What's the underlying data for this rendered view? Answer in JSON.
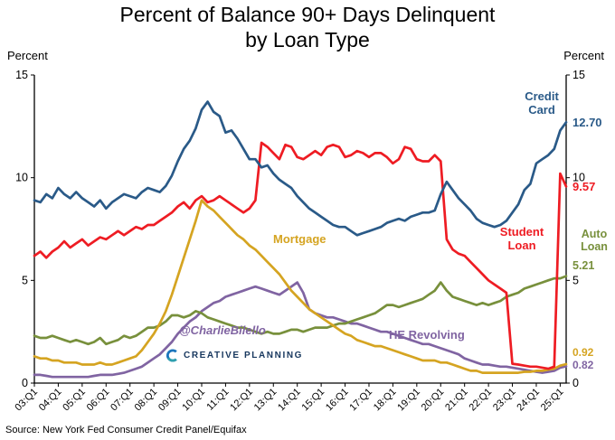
{
  "title": {
    "line1": "Percent of Balance 90+ Days Delinquent",
    "line2": "by Loan Type"
  },
  "axis": {
    "y_title_left": "Percent",
    "y_title_right": "Percent"
  },
  "annotations": {
    "credit_card_label": "Credit Card",
    "credit_card_value": "12.70",
    "student_loan_label": "Student Loan",
    "student_loan_value": "9.57",
    "auto_loan_label": "Auto Loan",
    "auto_loan_value": "5.21",
    "mortgage_label": "Mortgage",
    "mortgage_value": "0.92",
    "he_revolving_label": "HE Revolving",
    "he_revolving_value": "0.82"
  },
  "watermark": {
    "handle": "@CharlieBilello",
    "brand": "CREATIVE PLANNING"
  },
  "source": "Source: New York Fed Consumer Credit Panel/Equifax",
  "chart_data": {
    "type": "line",
    "title": "Percent of Balance 90+ Days Delinquent by Loan Type",
    "ylabel": "Percent",
    "ylim": [
      0,
      15
    ],
    "yticks": [
      0,
      5,
      10,
      15
    ],
    "grid": false,
    "legend_position": "inline-labels",
    "x_unit": "quarter",
    "x_start": "2003:Q1",
    "x_end": "2025:Q2",
    "n_points": 90,
    "x_tick_every_quarters": 4,
    "x_tick_labels": [
      "03:Q1",
      "04:Q1",
      "05:Q1",
      "06:Q1",
      "07:Q1",
      "08:Q1",
      "09:Q1",
      "10:Q1",
      "11:Q1",
      "12:Q1",
      "13:Q1",
      "14:Q1",
      "15:Q1",
      "16:Q1",
      "17:Q1",
      "18:Q1",
      "19:Q1",
      "20:Q1",
      "21:Q1",
      "22:Q1",
      "23:Q1",
      "24:Q1",
      "25:Q1"
    ],
    "series": [
      {
        "name": "HE Revolving",
        "color": "#8064A2",
        "end_label": "0.82",
        "values": [
          0.4,
          0.4,
          0.35,
          0.3,
          0.3,
          0.3,
          0.3,
          0.3,
          0.3,
          0.3,
          0.35,
          0.4,
          0.4,
          0.4,
          0.45,
          0.5,
          0.6,
          0.7,
          0.8,
          1.0,
          1.2,
          1.4,
          1.7,
          2.0,
          2.4,
          2.7,
          3.0,
          3.2,
          3.5,
          3.7,
          3.9,
          4.0,
          4.2,
          4.3,
          4.4,
          4.5,
          4.6,
          4.7,
          4.6,
          4.5,
          4.4,
          4.3,
          4.5,
          4.7,
          4.9,
          4.4,
          3.6,
          3.4,
          3.3,
          3.2,
          3.2,
          3.1,
          3.0,
          2.9,
          2.9,
          2.8,
          2.7,
          2.6,
          2.5,
          2.5,
          2.4,
          2.3,
          2.2,
          2.1,
          2.0,
          1.9,
          1.9,
          1.8,
          1.7,
          1.6,
          1.5,
          1.4,
          1.2,
          1.1,
          1.0,
          0.9,
          0.9,
          0.85,
          0.8,
          0.8,
          0.75,
          0.7,
          0.65,
          0.6,
          0.55,
          0.5,
          0.55,
          0.6,
          0.75,
          0.82
        ]
      },
      {
        "name": "Auto Loan",
        "color": "#78903C",
        "end_label": "5.21",
        "values": [
          2.3,
          2.2,
          2.2,
          2.3,
          2.2,
          2.1,
          2.0,
          2.1,
          2.0,
          1.9,
          2.0,
          2.2,
          1.9,
          2.0,
          2.1,
          2.3,
          2.2,
          2.3,
          2.5,
          2.7,
          2.7,
          2.8,
          3.0,
          3.3,
          3.3,
          3.2,
          3.3,
          3.5,
          3.4,
          3.2,
          3.1,
          3.0,
          2.9,
          2.8,
          2.7,
          2.7,
          2.6,
          2.5,
          2.4,
          2.5,
          2.4,
          2.4,
          2.5,
          2.6,
          2.6,
          2.5,
          2.6,
          2.7,
          2.7,
          2.7,
          2.8,
          2.9,
          2.9,
          3.0,
          3.1,
          3.2,
          3.3,
          3.4,
          3.6,
          3.8,
          3.8,
          3.7,
          3.8,
          3.9,
          4.0,
          4.1,
          4.3,
          4.5,
          4.9,
          4.5,
          4.2,
          4.1,
          4.0,
          3.9,
          3.8,
          3.9,
          3.8,
          3.9,
          4.0,
          4.2,
          4.3,
          4.4,
          4.6,
          4.7,
          4.8,
          4.9,
          5.0,
          5.1,
          5.1,
          5.21
        ]
      },
      {
        "name": "Mortgage",
        "color": "#D5A421",
        "end_label": "0.92",
        "values": [
          1.3,
          1.2,
          1.2,
          1.1,
          1.1,
          1.0,
          1.0,
          1.0,
          0.9,
          0.9,
          0.9,
          1.0,
          0.9,
          0.9,
          1.0,
          1.1,
          1.2,
          1.3,
          1.6,
          2.0,
          2.4,
          2.9,
          3.5,
          4.3,
          5.2,
          6.1,
          7.0,
          7.9,
          8.9,
          8.6,
          8.4,
          8.1,
          7.8,
          7.5,
          7.2,
          7.0,
          6.7,
          6.5,
          6.2,
          5.9,
          5.6,
          5.3,
          4.9,
          4.5,
          4.2,
          3.9,
          3.6,
          3.4,
          3.2,
          3.0,
          2.8,
          2.6,
          2.4,
          2.3,
          2.1,
          2.0,
          1.9,
          1.8,
          1.8,
          1.7,
          1.6,
          1.5,
          1.4,
          1.3,
          1.2,
          1.1,
          1.1,
          1.1,
          1.0,
          1.0,
          0.9,
          0.8,
          0.7,
          0.6,
          0.6,
          0.5,
          0.5,
          0.5,
          0.5,
          0.5,
          0.5,
          0.5,
          0.55,
          0.55,
          0.6,
          0.6,
          0.65,
          0.7,
          0.85,
          0.92
        ]
      },
      {
        "name": "Student Loan",
        "color": "#EE1C23",
        "end_label": "9.57",
        "values": [
          6.2,
          6.4,
          6.1,
          6.4,
          6.6,
          6.9,
          6.6,
          6.8,
          7.0,
          6.7,
          6.9,
          7.1,
          7.0,
          7.2,
          7.4,
          7.2,
          7.4,
          7.6,
          7.5,
          7.7,
          7.7,
          7.9,
          8.1,
          8.3,
          8.6,
          8.8,
          8.5,
          8.9,
          9.1,
          8.8,
          8.9,
          9.1,
          8.9,
          8.7,
          8.5,
          8.3,
          8.5,
          8.9,
          11.7,
          11.5,
          11.2,
          10.9,
          11.6,
          11.5,
          11.0,
          10.9,
          11.1,
          11.3,
          11.1,
          11.5,
          11.6,
          11.5,
          11.0,
          11.1,
          11.3,
          11.2,
          11.0,
          11.2,
          11.2,
          11.0,
          10.7,
          10.9,
          11.5,
          11.4,
          10.9,
          10.8,
          10.8,
          11.1,
          10.8,
          7.0,
          6.5,
          6.3,
          6.2,
          5.9,
          5.6,
          5.3,
          5.0,
          4.8,
          4.6,
          4.4,
          0.94,
          0.9,
          0.85,
          0.8,
          0.8,
          0.75,
          0.7,
          0.8,
          10.2,
          9.57
        ]
      },
      {
        "name": "Credit Card",
        "color": "#2A5A88",
        "end_label": "12.70",
        "values": [
          8.9,
          8.8,
          9.2,
          9.0,
          9.5,
          9.2,
          9.0,
          9.3,
          9.0,
          8.8,
          8.6,
          8.9,
          8.5,
          8.8,
          9.0,
          9.2,
          9.1,
          9.0,
          9.3,
          9.5,
          9.4,
          9.3,
          9.6,
          10.1,
          10.8,
          11.4,
          11.8,
          12.4,
          13.3,
          13.7,
          13.2,
          13.0,
          12.2,
          12.3,
          11.9,
          11.4,
          10.9,
          10.9,
          10.5,
          10.6,
          10.2,
          9.9,
          9.7,
          9.5,
          9.1,
          8.8,
          8.5,
          8.3,
          8.1,
          7.9,
          7.7,
          7.6,
          7.6,
          7.4,
          7.2,
          7.3,
          7.4,
          7.5,
          7.6,
          7.8,
          7.9,
          8.0,
          7.9,
          8.1,
          8.2,
          8.3,
          8.3,
          8.4,
          9.2,
          9.8,
          9.4,
          9.0,
          8.7,
          8.4,
          8.0,
          7.8,
          7.7,
          7.6,
          7.7,
          7.9,
          8.3,
          8.7,
          9.4,
          9.7,
          10.7,
          10.9,
          11.1,
          11.4,
          12.3,
          12.7
        ]
      }
    ]
  }
}
